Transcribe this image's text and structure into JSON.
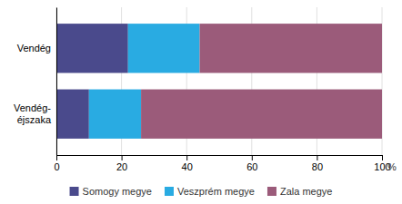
{
  "chart_data": {
    "type": "bar",
    "orientation": "horizontal",
    "stacked": true,
    "categories": [
      "Vendég",
      "Vendég-\néjszaka"
    ],
    "series": [
      {
        "name": "Somogy megye",
        "values": [
          22.0,
          10.0
        ],
        "color": "#4a4a8c"
      },
      {
        "name": "Veszprém megye",
        "values": [
          22.0,
          16.0
        ],
        "color": "#29abe2"
      },
      {
        "name": "Zala megye",
        "values": [
          56.0,
          74.0
        ],
        "color": "#9b5b7a"
      }
    ],
    "xlim": [
      0,
      100
    ],
    "xticks": [
      0,
      20,
      40,
      60,
      80,
      100
    ],
    "xlabel": "%",
    "grid": true,
    "legend": "bottom"
  }
}
